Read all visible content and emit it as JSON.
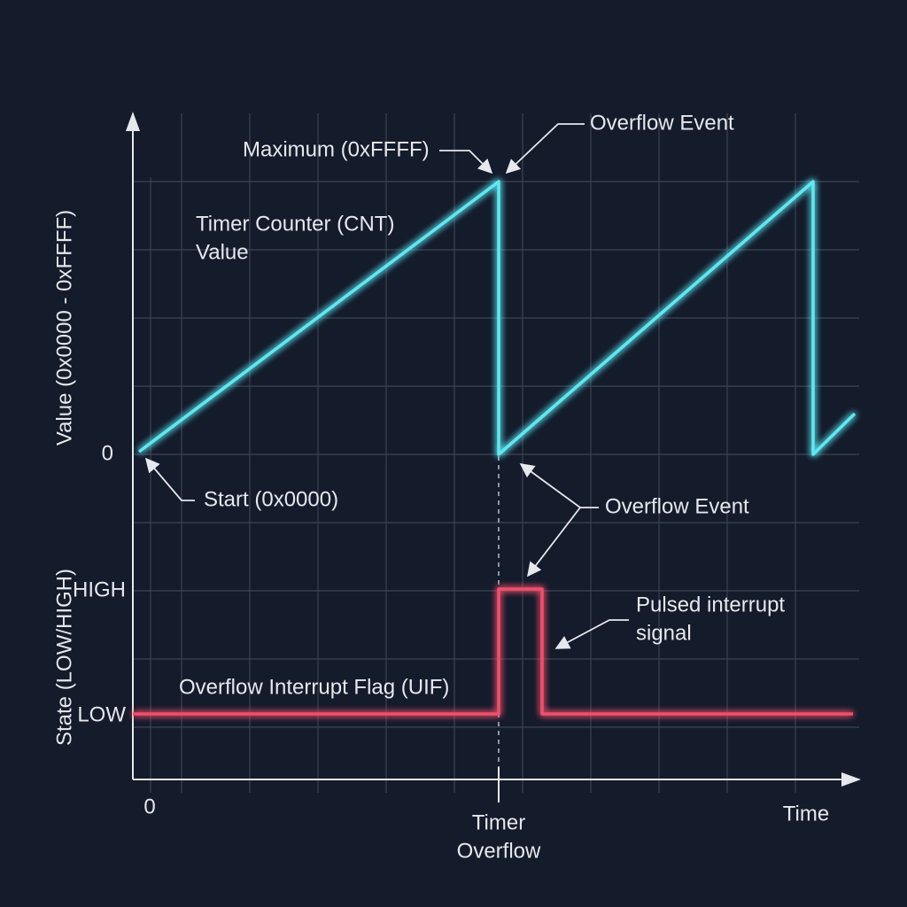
{
  "axes": {
    "y_upper_label": "Value (0x0000 - 0xFFFF)",
    "y_lower_label": "State (LOW/HIGH)",
    "y_zero": "0",
    "high": "HIGH",
    "low": "LOW",
    "x_zero": "0",
    "x_label": "Time",
    "x_marker": [
      "Timer",
      "Overflow"
    ]
  },
  "annotations": {
    "maximum": "Maximum (0xFFFF)",
    "overflow_top": "Overflow Event",
    "counter": [
      "Timer Counter (CNT)",
      "Value"
    ],
    "start": "Start (0x0000)",
    "overflow_middle": "Overflow Event",
    "pulse": [
      "Pulsed interrupt",
      "signal"
    ],
    "flag": "Overflow Interrupt Flag (UIF)"
  }
}
